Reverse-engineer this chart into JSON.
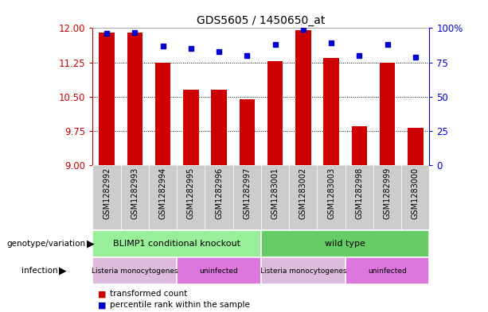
{
  "title": "GDS5605 / 1450650_at",
  "samples": [
    "GSM1282992",
    "GSM1282993",
    "GSM1282994",
    "GSM1282995",
    "GSM1282996",
    "GSM1282997",
    "GSM1283001",
    "GSM1283002",
    "GSM1283003",
    "GSM1282998",
    "GSM1282999",
    "GSM1283000"
  ],
  "transformed_count": [
    11.9,
    11.9,
    11.25,
    10.65,
    10.65,
    10.45,
    11.28,
    11.95,
    11.35,
    9.85,
    11.25,
    9.82
  ],
  "percentile_rank": [
    96,
    97,
    87,
    85,
    83,
    80,
    88,
    99,
    89,
    80,
    88,
    79
  ],
  "y_min": 9.0,
  "y_max": 12.0,
  "y_ticks": [
    9,
    9.75,
    10.5,
    11.25,
    12
  ],
  "y_right_ticks": [
    0,
    25,
    50,
    75,
    100
  ],
  "bar_color": "#cc0000",
  "dot_color": "#0000cc",
  "plot_bg_color": "#ffffff",
  "genotype_groups": [
    {
      "label": "BLIMP1 conditional knockout",
      "start": 0,
      "end": 6,
      "color": "#99ee99"
    },
    {
      "label": "wild type",
      "start": 6,
      "end": 12,
      "color": "#66cc66"
    }
  ],
  "infection_groups": [
    {
      "label": "Listeria monocytogenes",
      "start": 0,
      "end": 3,
      "color": "#ddbbdd"
    },
    {
      "label": "uninfected",
      "start": 3,
      "end": 6,
      "color": "#dd77dd"
    },
    {
      "label": "Listeria monocytogenes",
      "start": 6,
      "end": 9,
      "color": "#ddbbdd"
    },
    {
      "label": "uninfected",
      "start": 9,
      "end": 12,
      "color": "#dd77dd"
    }
  ],
  "left_labels": [
    "genotype/variation",
    "infection"
  ],
  "bar_color_label": "#cc0000",
  "dot_color_label": "#0000cc",
  "xlabel_color": "#cc0000",
  "ylabel_right_color": "#0000cc",
  "tick_label_bg": "#cccccc"
}
